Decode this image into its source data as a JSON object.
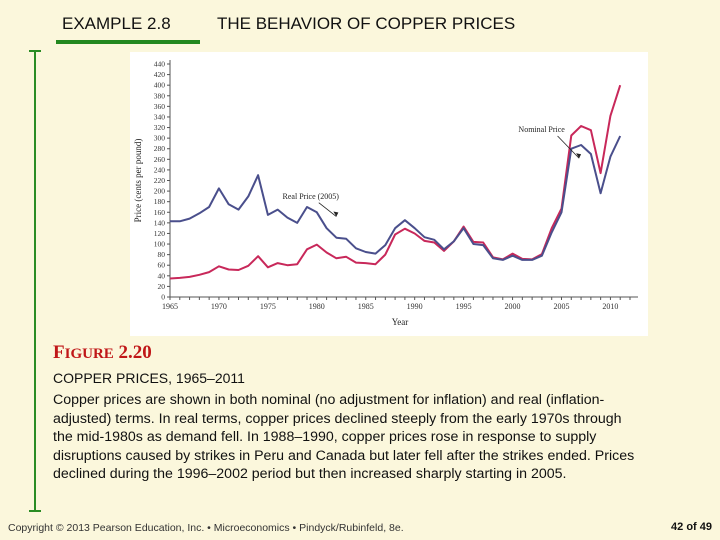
{
  "header": {
    "example_label": "EXAMPLE 2.8",
    "title": "THE BEHAVIOR OF COPPER PRICES"
  },
  "figure": {
    "label_prefix": "F",
    "label_rest": "IGURE",
    "label_number": "2.20",
    "caption": "COPPER PRICES, 1965–2011",
    "description": "Copper prices are shown in both nominal (no adjustment for inflation) and real (inflation-adjusted) terms.  In real terms, copper prices declined steeply from the early 1970s through the mid-1980s as demand fell. In 1988–1990, copper prices rose in response to supply disruptions caused by strikes in Peru and Canada but later fell after the strikes ended.  Prices declined during the 1996–2002 period but then increased sharply starting in 2005."
  },
  "footer": {
    "copyright": "Copyright © 2013  Pearson Education, Inc. •  Microeconomics  •  Pindyck/Rubinfeld, 8e.",
    "page": "42 of 49"
  },
  "colors": {
    "accent_green": "#2a8c24",
    "label_red": "#c01718",
    "nominal_color": "#c8285a",
    "real_color": "#4a4f8c",
    "background": "#fbf7dc"
  },
  "chart_data": {
    "type": "line",
    "title": "",
    "xlabel": "Year",
    "ylabel": "Price (cents per pound)",
    "xlim": [
      1965,
      2012
    ],
    "ylim": [
      0,
      440
    ],
    "yticks": [
      0,
      20,
      40,
      60,
      80,
      100,
      120,
      140,
      160,
      180,
      200,
      220,
      240,
      260,
      280,
      300,
      320,
      340,
      360,
      380,
      400,
      420,
      440
    ],
    "xticks": [
      1965,
      1970,
      1975,
      1980,
      1985,
      1990,
      1995,
      2000,
      2005,
      2010
    ],
    "grid": false,
    "legend": "annotations",
    "annotations": [
      {
        "text": "Nominal Price",
        "series": "Nominal Price",
        "x": 2007,
        "y": 256
      },
      {
        "text": "Real Price (2005)",
        "series": "Real Price (2005)",
        "x": 1981,
        "y": 150
      }
    ],
    "x": [
      1965,
      1966,
      1967,
      1968,
      1969,
      1970,
      1971,
      1972,
      1973,
      1974,
      1975,
      1976,
      1977,
      1978,
      1979,
      1980,
      1981,
      1982,
      1983,
      1984,
      1985,
      1986,
      1987,
      1988,
      1989,
      1990,
      1991,
      1992,
      1993,
      1994,
      1995,
      1996,
      1997,
      1998,
      1999,
      2000,
      2001,
      2002,
      2003,
      2004,
      2005,
      2006,
      2007,
      2008,
      2009,
      2010,
      2011
    ],
    "series": [
      {
        "name": "Nominal Price",
        "values": [
          35,
          36,
          38,
          42,
          47,
          58,
          52,
          51,
          59,
          77,
          56,
          64,
          60,
          62,
          90,
          99,
          84,
          73,
          76,
          65,
          64,
          62,
          80,
          118,
          129,
          120,
          106,
          103,
          87,
          105,
          133,
          104,
          103,
          75,
          71,
          82,
          72,
          71,
          81,
          130,
          167,
          305,
          323,
          315,
          234,
          342,
          400
        ]
      },
      {
        "name": "Real Price (2005)",
        "values": [
          143,
          143,
          148,
          158,
          170,
          205,
          175,
          165,
          190,
          230,
          155,
          165,
          150,
          140,
          170,
          160,
          130,
          112,
          110,
          92,
          85,
          82,
          98,
          130,
          145,
          130,
          113,
          108,
          90,
          105,
          130,
          100,
          98,
          73,
          70,
          78,
          70,
          70,
          78,
          122,
          160,
          280,
          287,
          270,
          196,
          265,
          304
        ]
      }
    ]
  }
}
